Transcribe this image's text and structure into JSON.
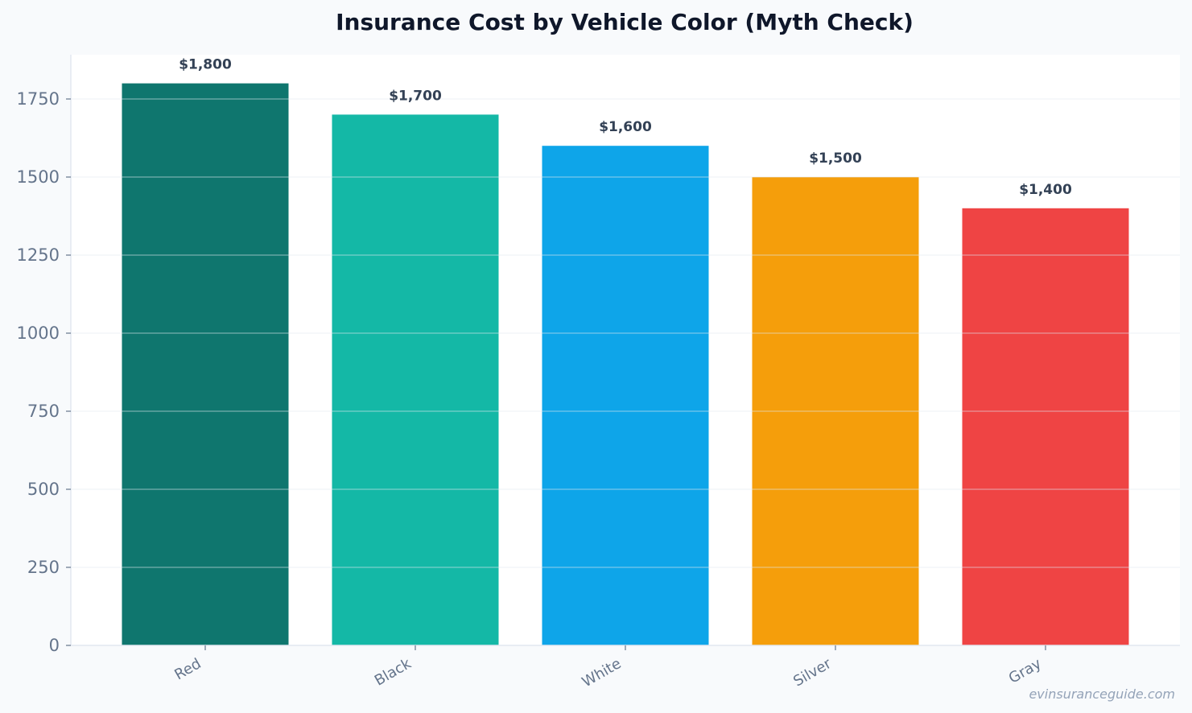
{
  "chart_data": {
    "type": "bar",
    "title": "Insurance Cost by Vehicle Color (Myth Check)",
    "xlabel": "",
    "ylabel": "",
    "categories": [
      "Red",
      "Black",
      "White",
      "Silver",
      "Gray"
    ],
    "values": [
      1800,
      1700,
      1600,
      1500,
      1400
    ],
    "value_labels": [
      "$1,800",
      "$1,700",
      "$1,600",
      "$1,500",
      "$1,400"
    ],
    "bar_colors": [
      "#0f766e",
      "#14b8a6",
      "#0ea5e9",
      "#f59e0b",
      "#ef4444"
    ],
    "ylim": [
      0,
      1890
    ],
    "yticks": [
      0,
      250,
      500,
      750,
      1000,
      1250,
      1500,
      1750
    ],
    "grid": true,
    "legend": "none"
  },
  "watermark": "evinsuranceguide.com"
}
